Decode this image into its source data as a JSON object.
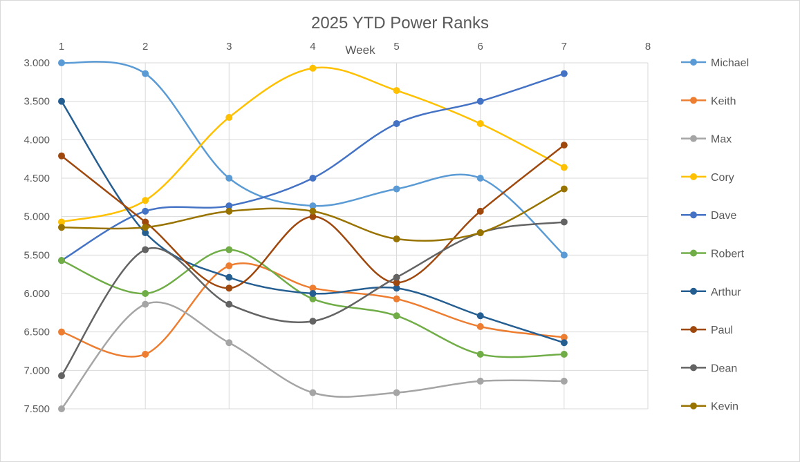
{
  "chart_data": {
    "type": "line",
    "title": "2025 YTD Power Ranks",
    "xlabel": "Week",
    "ylabel": "",
    "x_ticks": [
      1,
      2,
      3,
      4,
      5,
      6,
      7,
      8
    ],
    "xlim": [
      1,
      8
    ],
    "ylim": [
      3.0,
      7.5
    ],
    "y_reversed": true,
    "y_ticks": [
      "3.000",
      "3.500",
      "4.000",
      "4.500",
      "5.000",
      "5.500",
      "6.000",
      "6.500",
      "7.000",
      "7.500"
    ],
    "x_axis_position": "top",
    "grid": true,
    "smoothed": true,
    "legend_position": "right",
    "x": [
      1,
      2,
      3,
      4,
      5,
      6,
      7
    ],
    "series": [
      {
        "name": "Michael",
        "color": "#5B9BD5",
        "values": [
          3.0,
          3.14,
          4.5,
          4.86,
          4.64,
          4.5,
          5.5
        ]
      },
      {
        "name": "Keith",
        "color": "#ED7D31",
        "values": [
          6.5,
          6.79,
          5.64,
          5.93,
          6.07,
          6.43,
          6.57
        ]
      },
      {
        "name": "Max",
        "color": "#A5A5A5",
        "values": [
          7.5,
          6.14,
          6.64,
          7.29,
          7.29,
          7.14,
          7.14
        ]
      },
      {
        "name": "Cory",
        "color": "#FFC000",
        "values": [
          5.07,
          4.79,
          3.71,
          3.07,
          3.36,
          3.79,
          4.36
        ]
      },
      {
        "name": "Dave",
        "color": "#4472C4",
        "values": [
          5.57,
          4.93,
          4.86,
          4.5,
          3.79,
          3.5,
          3.14
        ]
      },
      {
        "name": "Robert",
        "color": "#70AD47",
        "values": [
          5.57,
          6.0,
          5.43,
          6.07,
          6.29,
          6.79,
          6.79
        ]
      },
      {
        "name": "Arthur",
        "color": "#255E91",
        "values": [
          3.5,
          5.21,
          5.79,
          6.0,
          5.93,
          6.29,
          6.64
        ]
      },
      {
        "name": "Paul",
        "color": "#9E480E",
        "values": [
          4.21,
          5.07,
          5.93,
          5.0,
          5.86,
          4.93,
          4.07
        ]
      },
      {
        "name": "Dean",
        "color": "#636363",
        "values": [
          7.07,
          5.43,
          6.14,
          6.36,
          5.79,
          5.21,
          5.07
        ]
      },
      {
        "name": "Kevin",
        "color": "#997300",
        "values": [
          5.14,
          5.14,
          4.93,
          4.93,
          5.29,
          5.21,
          4.64
        ]
      }
    ]
  }
}
